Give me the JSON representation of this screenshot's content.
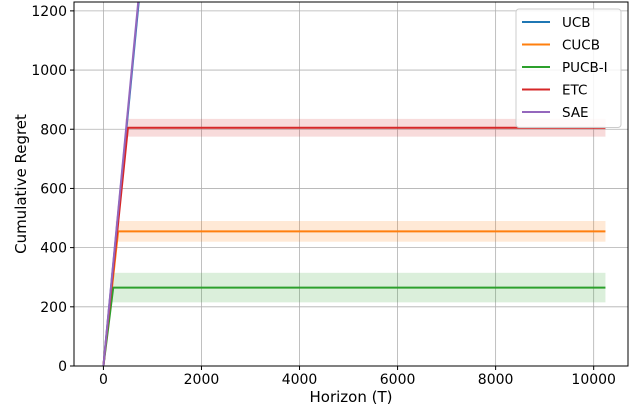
{
  "chart_data": {
    "type": "line",
    "title": "",
    "xlabel": "Horizon (T)",
    "ylabel": "Cumulative Regret",
    "xlim": [
      -600,
      10700
    ],
    "ylim": [
      0,
      1230
    ],
    "xticks": [
      0,
      2000,
      4000,
      6000,
      8000,
      10000
    ],
    "yticks": [
      0,
      200,
      400,
      600,
      800,
      1000,
      1200
    ],
    "grid": true,
    "legend_position": "top-right",
    "series": [
      {
        "name": "UCB",
        "color": "#1f77b4",
        "x": [
          0,
          720
        ],
        "y": [
          0,
          1230
        ]
      },
      {
        "name": "CUCB",
        "color": "#ff7f0e",
        "x": [
          0,
          300,
          10240
        ],
        "y": [
          0,
          455,
          455
        ],
        "band": {
          "x": [
            250,
            10240
          ],
          "lower": 420,
          "upper": 490
        }
      },
      {
        "name": "PUCB-I",
        "color": "#2ca02c",
        "x": [
          0,
          200,
          10240
        ],
        "y": [
          0,
          265,
          265
        ],
        "band": {
          "x": [
            150,
            10240
          ],
          "lower": 215,
          "upper": 315
        }
      },
      {
        "name": "ETC",
        "color": "#d62728",
        "x": [
          0,
          500,
          10240
        ],
        "y": [
          0,
          805,
          805
        ],
        "band": {
          "x": [
            450,
            10240
          ],
          "lower": 775,
          "upper": 835
        }
      },
      {
        "name": "SAE",
        "color": "#9467bd",
        "x": [
          0,
          710
        ],
        "y": [
          0,
          1230
        ]
      }
    ]
  }
}
